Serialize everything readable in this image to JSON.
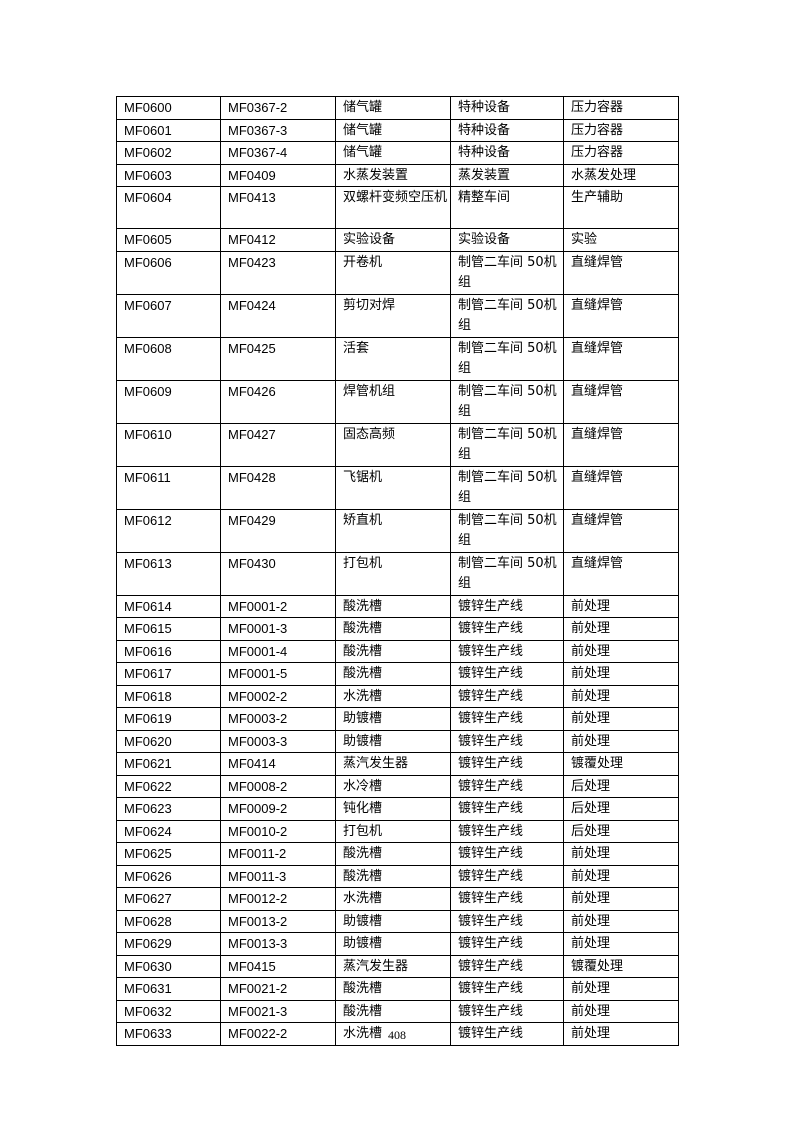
{
  "table": {
    "rows": [
      [
        "MF0600",
        "MF0367-2",
        "储气罐",
        "特种设备",
        "压力容器"
      ],
      [
        "MF0601",
        "MF0367-3",
        "储气罐",
        "特种设备",
        "压力容器"
      ],
      [
        "MF0602",
        "MF0367-4",
        "储气罐",
        "特种设备",
        "压力容器"
      ],
      [
        "MF0603",
        "MF0409",
        "水蒸发装置",
        "蒸发装置",
        "水蒸发处理"
      ],
      [
        "MF0604",
        "MF0413",
        "双螺杆变频空压机",
        "精整车间",
        "生产辅助"
      ],
      [
        "MF0605",
        "MF0412",
        "实验设备",
        "实验设备",
        "实验"
      ],
      [
        "MF0606",
        "MF0423",
        "开卷机",
        "制管二车间 50机组",
        "直缝焊管"
      ],
      [
        "MF0607",
        "MF0424",
        "剪切对焊",
        "制管二车间 50机组",
        "直缝焊管"
      ],
      [
        "MF0608",
        "MF0425",
        "活套",
        "制管二车间 50机组",
        "直缝焊管"
      ],
      [
        "MF0609",
        "MF0426",
        "焊管机组",
        "制管二车间 50机组",
        "直缝焊管"
      ],
      [
        "MF0610",
        "MF0427",
        "固态高频",
        "制管二车间 50机组",
        "直缝焊管"
      ],
      [
        "MF0611",
        "MF0428",
        "飞锯机",
        "制管二车间 50机组",
        "直缝焊管"
      ],
      [
        "MF0612",
        "MF0429",
        "矫直机",
        "制管二车间 50机组",
        "直缝焊管"
      ],
      [
        "MF0613",
        "MF0430",
        "打包机",
        "制管二车间 50机组",
        "直缝焊管"
      ],
      [
        "MF0614",
        "MF0001-2",
        "酸洗槽",
        "镀锌生产线",
        "前处理"
      ],
      [
        "MF0615",
        "MF0001-3",
        "酸洗槽",
        "镀锌生产线",
        "前处理"
      ],
      [
        "MF0616",
        "MF0001-4",
        "酸洗槽",
        "镀锌生产线",
        "前处理"
      ],
      [
        "MF0617",
        "MF0001-5",
        "酸洗槽",
        "镀锌生产线",
        "前处理"
      ],
      [
        "MF0618",
        "MF0002-2",
        "水洗槽",
        "镀锌生产线",
        "前处理"
      ],
      [
        "MF0619",
        "MF0003-2",
        "助镀槽",
        "镀锌生产线",
        "前处理"
      ],
      [
        "MF0620",
        "MF0003-3",
        "助镀槽",
        "镀锌生产线",
        "前处理"
      ],
      [
        "MF0621",
        "MF0414",
        "蒸汽发生器",
        "镀锌生产线",
        "镀覆处理"
      ],
      [
        "MF0622",
        "MF0008-2",
        "水冷槽",
        "镀锌生产线",
        "后处理"
      ],
      [
        "MF0623",
        "MF0009-2",
        "钝化槽",
        "镀锌生产线",
        "后处理"
      ],
      [
        "MF0624",
        "MF0010-2",
        "打包机",
        "镀锌生产线",
        "后处理"
      ],
      [
        "MF0625",
        "MF0011-2",
        "酸洗槽",
        "镀锌生产线",
        "前处理"
      ],
      [
        "MF0626",
        "MF0011-3",
        "酸洗槽",
        "镀锌生产线",
        "前处理"
      ],
      [
        "MF0627",
        "MF0012-2",
        "水洗槽",
        "镀锌生产线",
        "前处理"
      ],
      [
        "MF0628",
        "MF0013-2",
        "助镀槽",
        "镀锌生产线",
        "前处理"
      ],
      [
        "MF0629",
        "MF0013-3",
        "助镀槽",
        "镀锌生产线",
        "前处理"
      ],
      [
        "MF0630",
        "MF0415",
        "蒸汽发生器",
        "镀锌生产线",
        "镀覆处理"
      ],
      [
        "MF0631",
        "MF0021-2",
        "酸洗槽",
        "镀锌生产线",
        "前处理"
      ],
      [
        "MF0632",
        "MF0021-3",
        "酸洗槽",
        "镀锌生产线",
        "前处理"
      ],
      [
        "MF0633",
        "MF0022-2",
        "水洗槽",
        "镀锌生产线",
        "前处理"
      ]
    ]
  },
  "footer": {
    "page_number": "408"
  }
}
